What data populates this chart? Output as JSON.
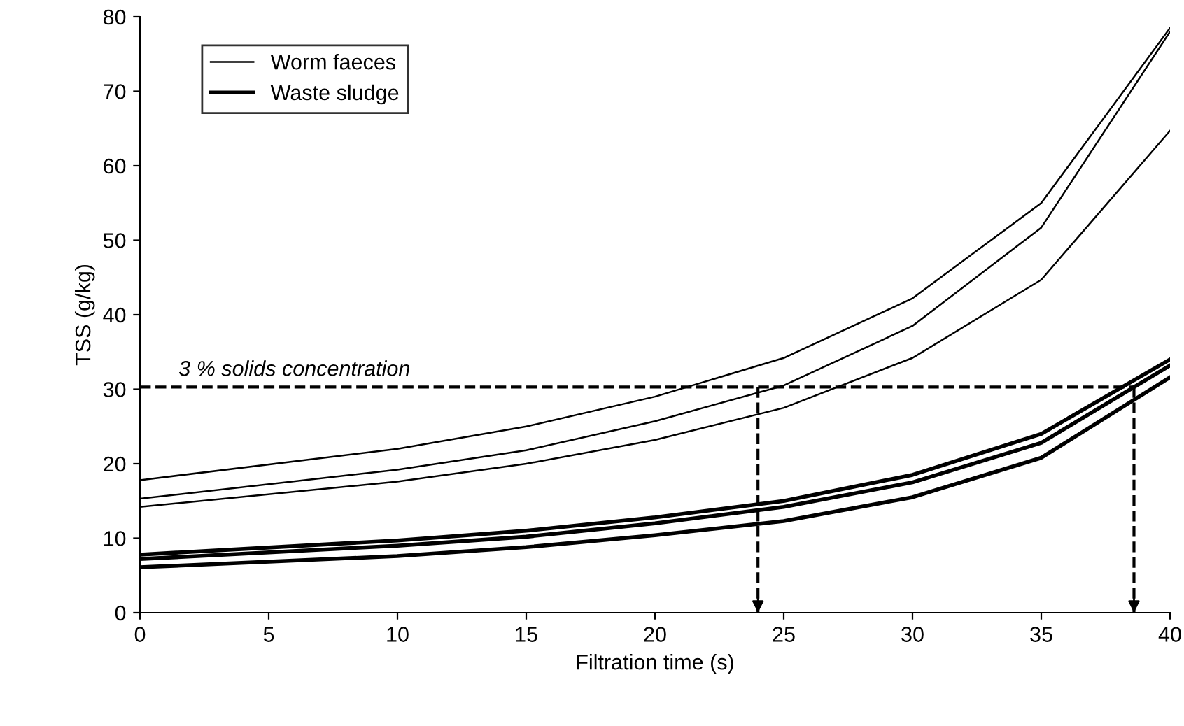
{
  "chart_data": {
    "type": "line",
    "xlabel": "Filtration time (s)",
    "ylabel": "TSS (g/kg)",
    "x": [
      0,
      10,
      15,
      20,
      25,
      30,
      35,
      40
    ],
    "series": [
      {
        "name": "Worm faeces",
        "color": "#000000",
        "values": [
          17.8,
          22,
          25,
          29,
          34.2,
          42.2,
          55,
          78.5
        ]
      },
      {
        "color": "#000000",
        "values": [
          15.3,
          19.2,
          21.8,
          25.7,
          30.5,
          38.5,
          51.7,
          78
        ]
      },
      {
        "color": "#000000",
        "values": [
          14.2,
          17.6,
          20,
          23.2,
          27.5,
          34.2,
          44.7,
          64.7
        ]
      },
      {
        "name": "Waste sludge",
        "color": "#000000",
        "values": [
          7.8,
          9.7,
          11,
          12.8,
          15,
          18.5,
          24,
          34
        ]
      },
      {
        "color": "#000000",
        "values": [
          7.2,
          9.0,
          10.2,
          12,
          14.2,
          17.5,
          22.8,
          33.2
        ]
      },
      {
        "color": "#000000",
        "values": [
          6.1,
          7.6,
          8.8,
          10.4,
          12.3,
          15.5,
          20.8,
          31.6
        ]
      }
    ],
    "xlim": [
      0,
      40
    ],
    "xticks": [
      0,
      5,
      10,
      15,
      20,
      25,
      30,
      35,
      40
    ],
    "ylim": [
      0,
      80
    ],
    "yticks": [
      0,
      10,
      20,
      30,
      40,
      50,
      60,
      70,
      80
    ],
    "ref_lines": [
      {
        "axis": "y",
        "value": 30.3,
        "label": "3 % solids concentration",
        "line_style": "dashed"
      },
      {
        "axis": "x",
        "value": 24,
        "line_style": "dashed"
      },
      {
        "axis": "x",
        "value": 38.6,
        "line_style": "dashed"
      }
    ],
    "grid": false,
    "legend": "top left",
    "marker": "none",
    "line_style": "solid"
  }
}
